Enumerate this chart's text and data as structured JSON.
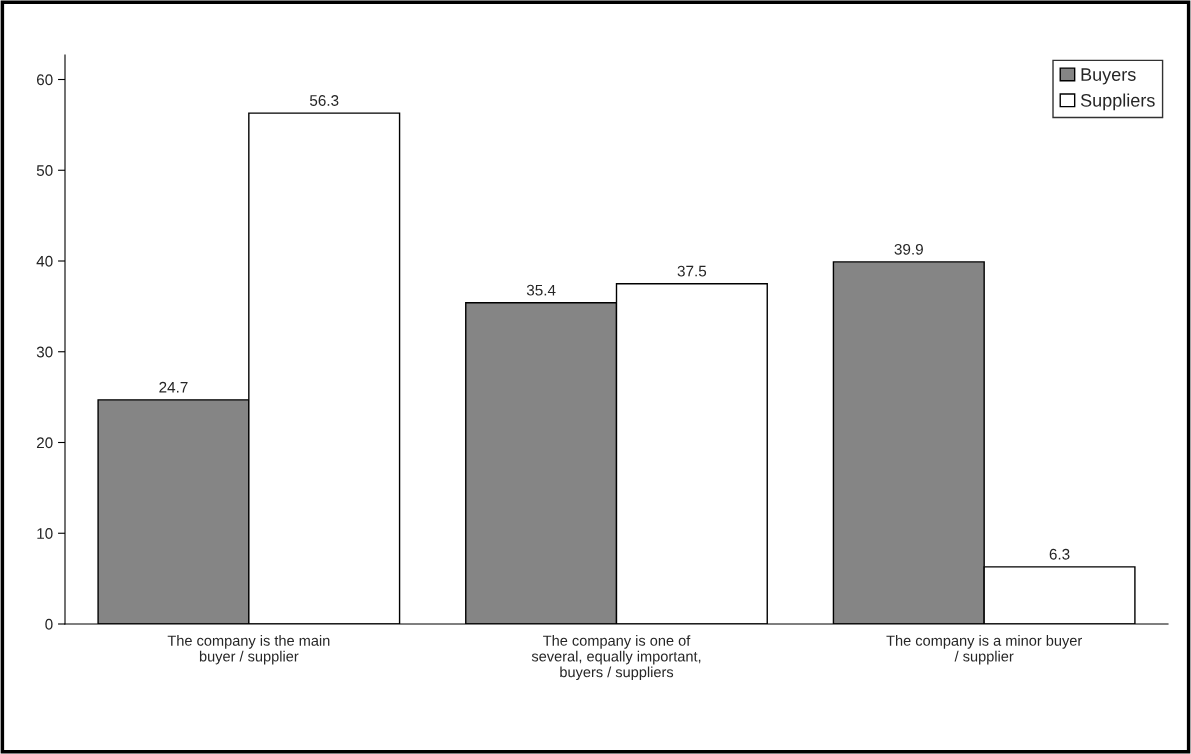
{
  "chart_data": {
    "type": "bar",
    "categories": [
      "The company is the main\nbuyer / supplier",
      "The company is one of\nseveral, equally important,\nbuyers / suppliers",
      "The company is a minor buyer\n/ supplier"
    ],
    "series": [
      {
        "name": "Buyers",
        "color": "#858585",
        "values": [
          24.7,
          35.4,
          39.9
        ]
      },
      {
        "name": "Suppliers",
        "color": "#ffffff",
        "values": [
          56.3,
          37.5,
          6.3
        ]
      }
    ],
    "ylim": [
      0,
      62.7
    ],
    "yticks": [
      0,
      10,
      20,
      30,
      40,
      50,
      60
    ],
    "data_labels": true,
    "legend": "top right",
    "grid": false
  }
}
